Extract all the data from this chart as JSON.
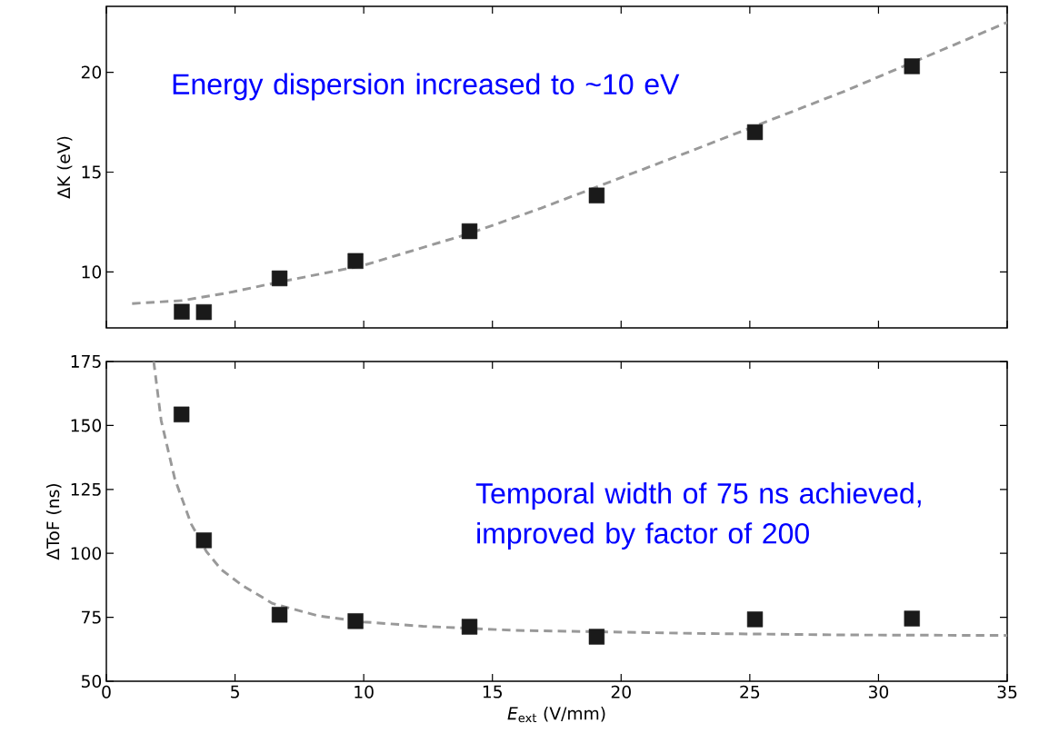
{
  "chart_data": [
    {
      "type": "scatter",
      "ylabel": "ΔK (eV)",
      "xlim": [
        0,
        35
      ],
      "ylim": [
        7.2,
        23.3
      ],
      "xticks": [
        0,
        5,
        10,
        15,
        20,
        25,
        30,
        35
      ],
      "yticks": [
        10,
        15,
        20
      ],
      "tick_labels": "y",
      "marker": "square",
      "annotations": [
        "Energy dispersion increased to ~10 eV"
      ],
      "series": [
        {
          "color": "#1a1a1a",
          "x": [
            2.93,
            3.79,
            6.73,
            9.68,
            14.11,
            19.05,
            25.2,
            31.3
          ],
          "values": [
            8.01,
            7.99,
            9.68,
            10.55,
            12.04,
            13.83,
            17.0,
            20.3
          ]
        },
        {
          "type": "line",
          "marker": "none",
          "line_style": "dashed",
          "color": "#999999",
          "x": [
            1.0,
            2.95,
            4.7,
            6.66,
            9.96,
            14.07,
            16.9,
            22.8,
            28.7,
            35
          ],
          "values": [
            8.42,
            8.57,
            8.95,
            9.48,
            10.32,
            11.91,
            13.2,
            16.1,
            19.06,
            22.5
          ]
        }
      ]
    },
    {
      "type": "scatter",
      "xlabel": "*E*$_{ext}$ (V/mm)",
      "ylabel": "ΔToF (ns)",
      "xlim": [
        0,
        35
      ],
      "ylim": [
        50,
        175
      ],
      "xticks": [
        0,
        5,
        10,
        15,
        20,
        25,
        30,
        35
      ],
      "yticks": [
        50,
        75,
        100,
        125,
        150,
        175
      ],
      "marker": "square",
      "annotations": [
        "Temporal width of 75 ns achieved, improved by factor of 200"
      ],
      "series": [
        {
          "color": "#1a1a1a",
          "x": [
            2.92,
            3.79,
            6.73,
            9.68,
            14.11,
            19.05,
            25.2,
            31.3
          ],
          "values": [
            154.3,
            105.1,
            76.0,
            73.5,
            71.3,
            67.4,
            74.2,
            74.5
          ]
        },
        {
          "type": "line",
          "marker": "none",
          "line_style": "dashed",
          "color": "#999999",
          "x": [
            1.84,
            2.13,
            2.66,
            3.3,
            3.89,
            4.47,
            5.29,
            6.46,
            8.22,
            9.97,
            12.3,
            15.8,
            17.0,
            22.9,
            28.7,
            35
          ],
          "values": [
            175,
            151.9,
            129.1,
            111.4,
            100.7,
            93.6,
            87.4,
            80.4,
            75.6,
            73.2,
            71.5,
            69.9,
            69.7,
            68.7,
            68.1,
            67.9
          ]
        }
      ]
    }
  ]
}
